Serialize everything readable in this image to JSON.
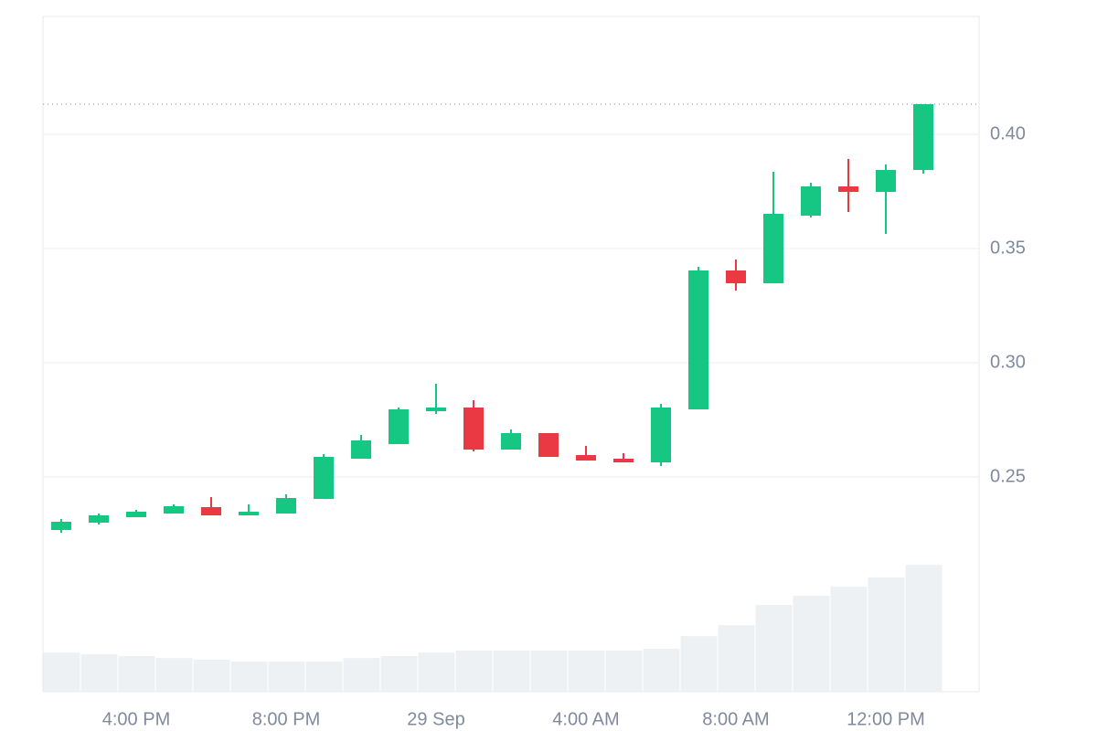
{
  "chart_data": {
    "type": "candlestick",
    "categories": [
      null,
      null,
      "4:00 PM",
      null,
      null,
      null,
      "8:00 PM",
      null,
      null,
      null,
      "29 Sep",
      null,
      null,
      null,
      "4:00 AM",
      null,
      null,
      null,
      "8:00 AM",
      null,
      null,
      null,
      "12:00 PM",
      null
    ],
    "open": [
      0.2268,
      0.23,
      0.2324,
      0.234,
      0.2368,
      0.2332,
      0.234,
      0.2404,
      0.258,
      0.2644,
      0.2788,
      0.2804,
      0.262,
      0.2692,
      0.2596,
      0.258,
      0.2564,
      0.2796,
      0.3404,
      0.3348,
      0.3644,
      0.3772,
      0.3748,
      0.3844
    ],
    "high": [
      0.2316,
      0.234,
      0.2356,
      0.238,
      0.2412,
      0.238,
      0.2424,
      0.26,
      0.2684,
      0.2804,
      0.2908,
      0.2836,
      0.2708,
      0.2692,
      0.2636,
      0.2604,
      0.282,
      0.342,
      0.3452,
      0.3836,
      0.3788,
      0.3892,
      0.3868,
      0.4132
    ],
    "low": [
      0.2256,
      0.2292,
      0.2324,
      0.234,
      0.2332,
      0.2332,
      0.234,
      0.2404,
      0.258,
      0.2644,
      0.2776,
      0.2612,
      0.262,
      0.2588,
      0.2572,
      0.2564,
      0.2548,
      0.2796,
      0.3316,
      0.3348,
      0.3636,
      0.366,
      0.3564,
      0.3828
    ],
    "close": [
      0.2304,
      0.2332,
      0.2348,
      0.2372,
      0.2332,
      0.2348,
      0.2408,
      0.2588,
      0.266,
      0.2796,
      0.2804,
      0.262,
      0.2692,
      0.2588,
      0.2572,
      0.2564,
      0.2804,
      0.3404,
      0.3348,
      0.3652,
      0.3772,
      0.3748,
      0.3844,
      0.4132
    ],
    "volume": [
      14.3,
      13.7,
      13,
      12.3,
      11.7,
      11,
      11,
      11,
      12.3,
      13,
      14.3,
      15,
      15,
      15,
      15,
      15,
      15.7,
      20.3,
      24.3,
      31.7,
      35,
      38.3,
      41.7,
      46.3
    ],
    "volume_lim": [
      0,
      100
    ],
    "up_color": "#16c784",
    "down_color": "#ea3943",
    "volume_color": "#eef1f4",
    "ylim": [
      0.156,
      0.4516
    ],
    "yticks": [
      {
        "value": 0.4,
        "label": "0.40"
      },
      0.35,
      {
        "value": 0.3,
        "label": "0.30"
      },
      0.25
    ],
    "grid": true
  }
}
